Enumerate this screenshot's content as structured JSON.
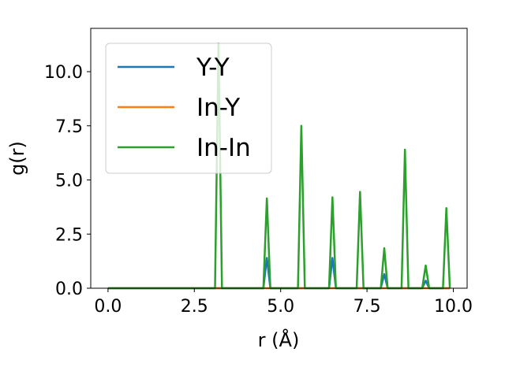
{
  "chart_data": {
    "type": "line",
    "title": "",
    "xlabel": "r (Å)",
    "ylabel": "g(r)",
    "xlim": [
      -0.5,
      10.4
    ],
    "ylim": [
      0,
      12
    ],
    "xticks": [
      0.0,
      2.5,
      5.0,
      7.5,
      10.0
    ],
    "yticks": [
      0.0,
      2.5,
      5.0,
      7.5,
      10.0
    ],
    "xtick_labels": [
      "0.0",
      "2.5",
      "5.0",
      "7.5",
      "10.0"
    ],
    "ytick_labels": [
      "0.0",
      "2.5",
      "5.0",
      "7.5",
      "10.0"
    ],
    "grid": false,
    "legend_position": "top-left",
    "series": [
      {
        "name": "Y-Y",
        "color": "#1f77b4",
        "x": [
          0.0,
          4.5,
          4.6,
          4.7,
          6.4,
          6.5,
          6.6,
          7.9,
          8.0,
          8.1,
          9.1,
          9.2,
          9.3,
          9.9
        ],
        "y": [
          0.0,
          0.0,
          1.4,
          0.0,
          0.0,
          1.4,
          0.0,
          0.0,
          0.65,
          0.0,
          0.0,
          0.35,
          0.0,
          0.0
        ]
      },
      {
        "name": "In-Y",
        "color": "#ff7f0e",
        "x": [
          0.0,
          9.9
        ],
        "y": [
          0.0,
          0.0
        ]
      },
      {
        "name": "In-In",
        "color": "#2ca02c",
        "x": [
          0.0,
          3.1,
          3.2,
          3.3,
          4.5,
          4.6,
          4.7,
          5.5,
          5.6,
          5.7,
          6.4,
          6.5,
          6.6,
          7.2,
          7.3,
          7.4,
          7.9,
          8.0,
          8.1,
          8.5,
          8.6,
          8.7,
          9.1,
          9.2,
          9.3,
          9.7,
          9.8,
          9.9
        ],
        "y": [
          0.0,
          0.0,
          11.3,
          0.0,
          0.0,
          4.15,
          0.0,
          0.0,
          7.5,
          0.0,
          0.0,
          4.2,
          0.0,
          0.0,
          4.45,
          0.0,
          0.0,
          1.85,
          0.0,
          0.0,
          6.4,
          0.0,
          0.0,
          1.05,
          0.0,
          0.0,
          3.7,
          0.0
        ]
      }
    ]
  }
}
